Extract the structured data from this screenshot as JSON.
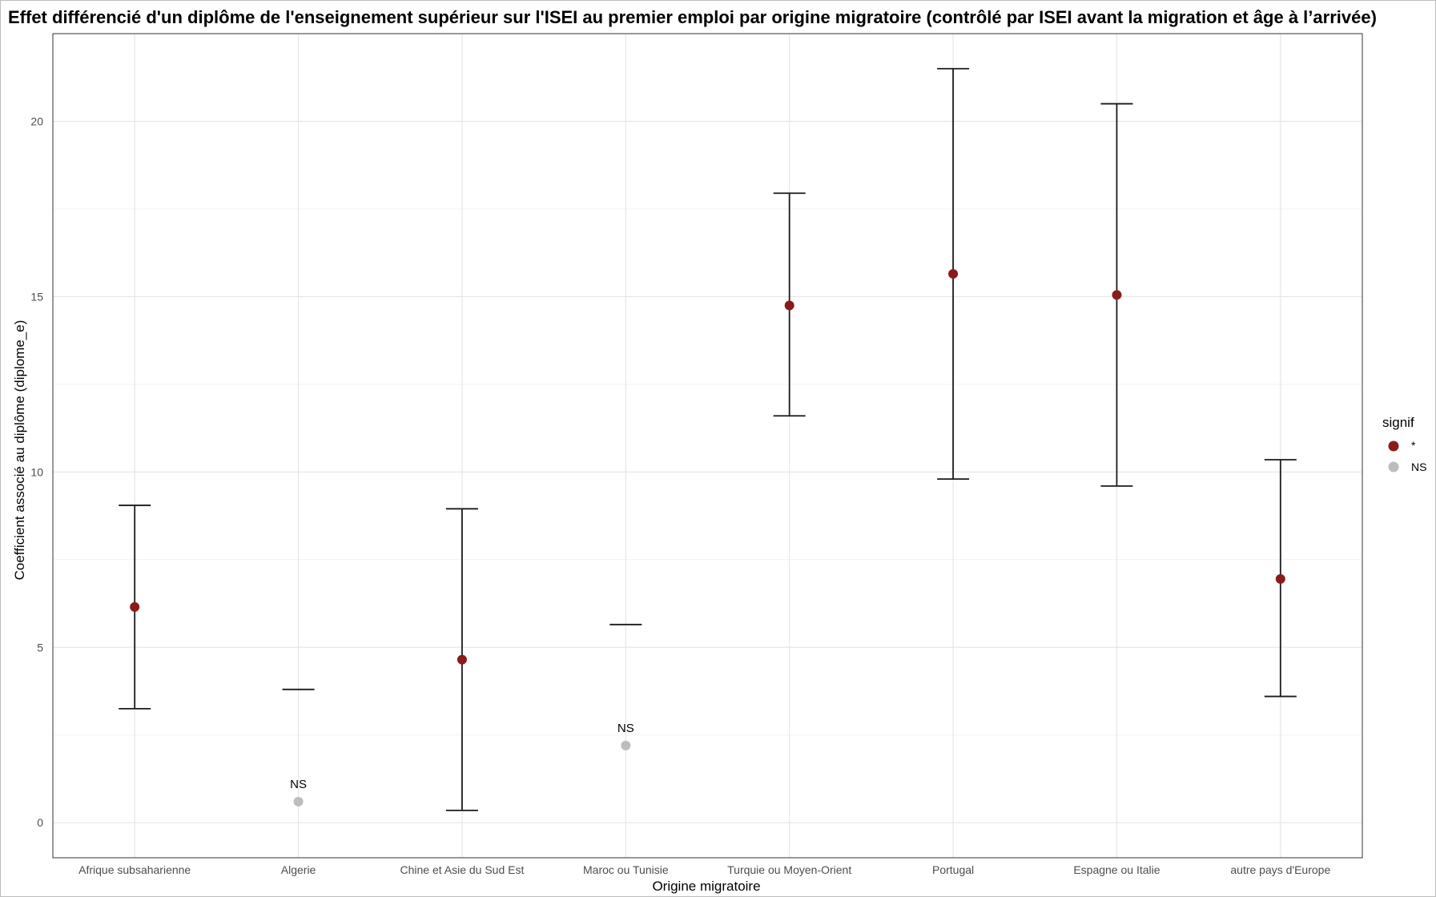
{
  "colors": {
    "significant": "#8b1a1a",
    "not_significant": "#bdbdbd",
    "errorbar": "#1a1a1a",
    "grid_major": "#e6e6e6",
    "grid_minor": "#f2f2f2",
    "panel_border": "#333333"
  },
  "chart_data": {
    "type": "scatter",
    "title": "Effet différencié d'un diplôme de l'enseignement supérieur sur l'ISEI au premier emploi par origine migratoire (contrôlé par ISEI avant la migration et âge à l’arrivée)",
    "xlabel": "Origine migratoire",
    "ylabel": "Coefficient associé au diplôme (diplome_e)",
    "ylim": [
      -1,
      22.5
    ],
    "yticks": [
      0,
      5,
      10,
      15,
      20
    ],
    "ytick_labels": [
      "0",
      "5",
      "10",
      "15",
      "20"
    ],
    "grid": true,
    "categories": [
      "Afrique subsaharienne",
      "Algerie",
      "Chine et Asie du Sud Est",
      "Maroc ou Tunisie",
      "Turquie ou Moyen-Orient",
      "Portugal",
      "Espagne ou Italie",
      "autre pays d'Europe"
    ],
    "points": [
      {
        "category": "Afrique subsaharienne",
        "estimate": 6.15,
        "low": 3.25,
        "high": 9.05,
        "signif": "*",
        "label": ""
      },
      {
        "category": "Algerie",
        "estimate": 0.6,
        "low": null,
        "high": 3.8,
        "signif": "NS",
        "label": "NS"
      },
      {
        "category": "Chine et Asie du Sud Est",
        "estimate": 4.65,
        "low": 0.35,
        "high": 8.95,
        "signif": "*",
        "label": ""
      },
      {
        "category": "Maroc ou Tunisie",
        "estimate": 2.2,
        "low": null,
        "high": 5.65,
        "signif": "NS",
        "label": "NS"
      },
      {
        "category": "Turquie ou Moyen-Orient",
        "estimate": 14.75,
        "low": 11.6,
        "high": 17.95,
        "signif": "*",
        "label": ""
      },
      {
        "category": "Portugal",
        "estimate": 15.65,
        "low": 9.8,
        "high": 21.5,
        "signif": "*",
        "label": ""
      },
      {
        "category": "Espagne ou Italie",
        "estimate": 15.05,
        "low": 9.6,
        "high": 20.5,
        "signif": "*",
        "label": ""
      },
      {
        "category": "autre pays d'Europe",
        "estimate": 6.95,
        "low": 3.6,
        "high": 10.35,
        "signif": "*",
        "label": ""
      }
    ],
    "legend": {
      "title": "signif",
      "placement": "right",
      "entries": [
        {
          "label": "*",
          "key": "significant"
        },
        {
          "label": "NS",
          "key": "not_significant"
        }
      ]
    }
  }
}
